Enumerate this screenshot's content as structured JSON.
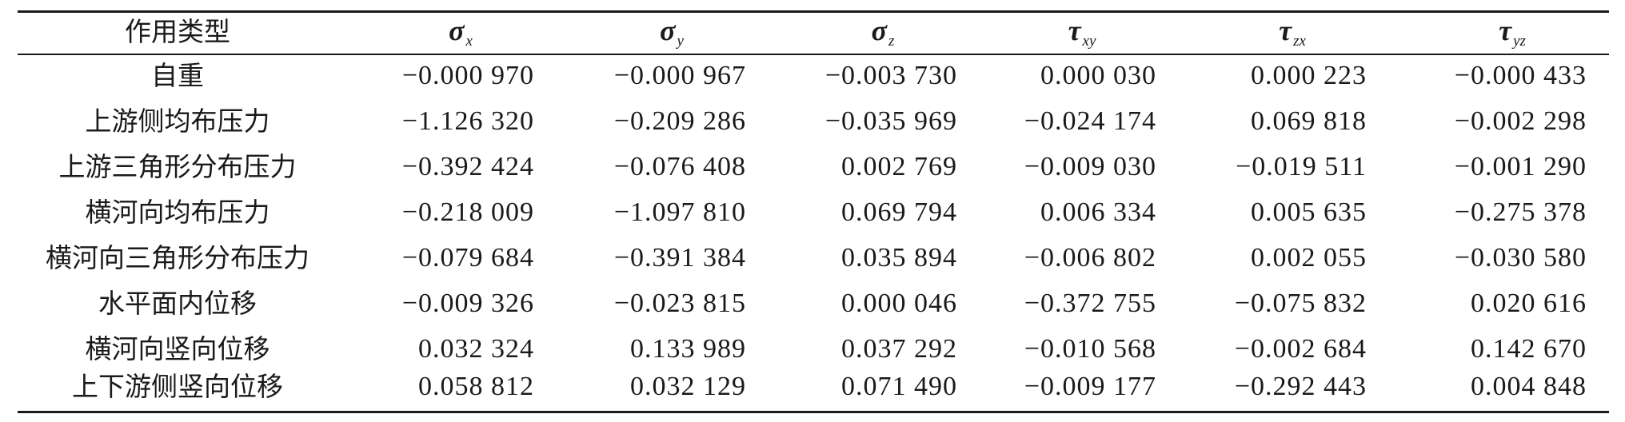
{
  "table": {
    "header": {
      "name": "作用类型",
      "columns": [
        {
          "symbol": "σ",
          "sub": "x"
        },
        {
          "symbol": "σ",
          "sub": "y"
        },
        {
          "symbol": "σ",
          "sub": "z"
        },
        {
          "symbol": "τ",
          "sub": "xy"
        },
        {
          "symbol": "τ",
          "sub": "zx"
        },
        {
          "symbol": "τ",
          "sub": "yz"
        }
      ]
    },
    "rows": [
      {
        "name": "自重",
        "values": [
          "−0.000 970",
          "−0.000 967",
          "−0.003 730",
          "0.000 030",
          "0.000 223",
          "−0.000 433"
        ]
      },
      {
        "name": "上游侧均布压力",
        "values": [
          "−1.126 320",
          "−0.209 286",
          "−0.035 969",
          "−0.024 174",
          "0.069 818",
          "−0.002 298"
        ]
      },
      {
        "name": "上游三角形分布压力",
        "values": [
          "−0.392 424",
          "−0.076 408",
          "0.002 769",
          "−0.009 030",
          "−0.019 511",
          "−0.001 290"
        ]
      },
      {
        "name": "横河向均布压力",
        "values": [
          "−0.218 009",
          "−1.097 810",
          "0.069 794",
          "0.006 334",
          "0.005 635",
          "−0.275 378"
        ]
      },
      {
        "name": "横河向三角形分布压力",
        "values": [
          "−0.079 684",
          "−0.391 384",
          "0.035 894",
          "−0.006 802",
          "0.002 055",
          "−0.030 580"
        ]
      },
      {
        "name": "水平面内位移",
        "values": [
          "−0.009 326",
          "−0.023 815",
          "0.000 046",
          "−0.372 755",
          "−0.075 832",
          "0.020 616"
        ]
      },
      {
        "name": "横河向竖向位移",
        "values": [
          "0.032 324",
          "0.133 989",
          "0.037 292",
          "−0.010 568",
          "−0.002 684",
          "0.142 670"
        ]
      },
      {
        "name": "上下游侧竖向位移",
        "values": [
          "0.058 812",
          "0.032 129",
          "0.071 490",
          "−0.009 177",
          "−0.292 443",
          "0.004 848"
        ]
      }
    ]
  }
}
